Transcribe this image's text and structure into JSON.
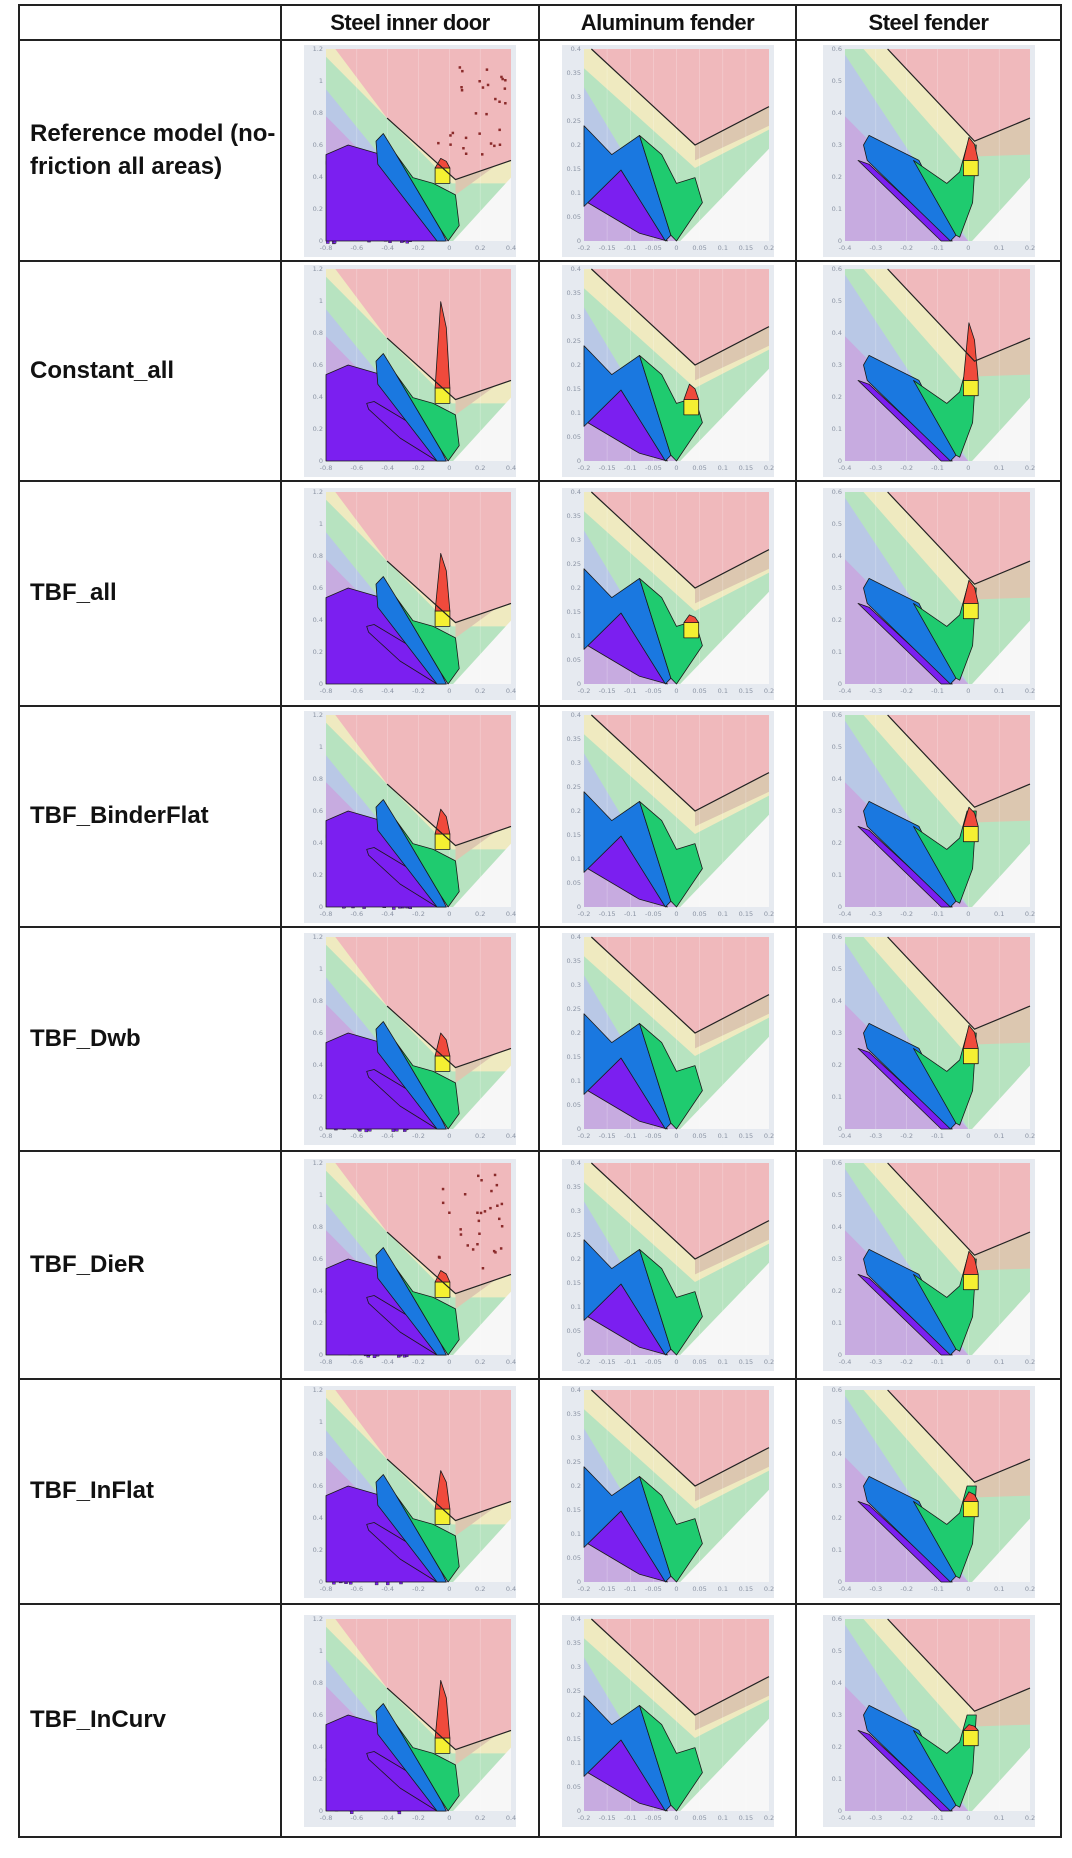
{
  "table": {
    "corner": "",
    "columns": [
      {
        "title": "Steel inner door",
        "x_ticks": [
          "-0.8",
          "-0.6",
          "-0.4",
          "-0.2",
          "0",
          "0.2",
          "0.4"
        ],
        "y_ticks": [
          "0",
          "0.2",
          "0.4",
          "0.6",
          "0.8",
          "1",
          "1.2"
        ]
      },
      {
        "title": "Aluminum fender",
        "x_ticks": [
          "-0.2",
          "-0.15",
          "-0.1",
          "-0.05",
          "0",
          "0.05",
          "0.1",
          "0.15",
          "0.2"
        ],
        "y_ticks": [
          "0",
          "0.05",
          "0.1",
          "0.15",
          "0.2",
          "0.25",
          "0.3",
          "0.35",
          "0.4"
        ]
      },
      {
        "title": "Steel fender",
        "x_ticks": [
          "-0.4",
          "-0.3",
          "-0.2",
          "-0.1",
          "0",
          "0.1",
          "0.2"
        ],
        "y_ticks": [
          "0",
          "0.1",
          "0.2",
          "0.3",
          "0.4",
          "0.5",
          "0.6"
        ]
      }
    ],
    "rows": [
      {
        "label": "Reference model (no-friction all areas)"
      },
      {
        "label": "Constant_all"
      },
      {
        "label": "TBF_all"
      },
      {
        "label": "TBF_BinderFlat"
      },
      {
        "label": "TBF_Dwb"
      },
      {
        "label": "TBF_DieR"
      },
      {
        "label": "TBF_InFlat"
      },
      {
        "label": "TBF_InCurv"
      }
    ]
  },
  "colors": {
    "zone_fail": "#f0b9bc",
    "zone_risk": "#efeac0",
    "zone_safe": "#b7e3c0",
    "zone_compress": "#b9c8e6",
    "zone_wrinkle": "#c7abe0",
    "zone_thin": "#dcc7b0",
    "zone_low": "#f7f7f7",
    "pt_purple": "#7b1ff0",
    "pt_blue": "#1a78e0",
    "pt_green": "#1fcb6f",
    "pt_yellow": "#f5f032",
    "pt_orange": "#f3a24a",
    "pt_red": "#f04a3c"
  }
}
